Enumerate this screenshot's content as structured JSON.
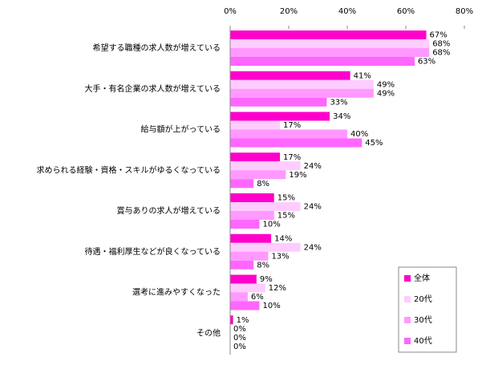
{
  "chart_data": {
    "type": "bar",
    "orientation": "horizontal",
    "categories": [
      "希望する職種の求人数が増えている",
      "大手・有名企業の求人数が増えている",
      "給与額が上がっている",
      "求められる経験・資格・スキルがゆるくなっている",
      "賞与ありの求人が増えている",
      "待遇・福利厚生などが良くなっている",
      "選考に進みやすくなった",
      "その他"
    ],
    "series": [
      {
        "name": "全体",
        "color": "#ff00cc",
        "values": [
          67,
          41,
          34,
          17,
          15,
          14,
          9,
          1
        ],
        "value_labels": [
          "67%",
          "41%",
          "34%",
          "17%",
          "15%",
          "14%",
          "9%",
          "1%"
        ]
      },
      {
        "name": "20代",
        "color": "#ffccff",
        "values": [
          68,
          49,
          17,
          24,
          24,
          24,
          12,
          0
        ],
        "value_labels": [
          "68%",
          "49%",
          "17%",
          "24%",
          "24%",
          "24%",
          "12%",
          "0%"
        ]
      },
      {
        "name": "30代",
        "color": "#ff99ff",
        "values": [
          68,
          49,
          40,
          19,
          15,
          13,
          6,
          0
        ],
        "value_labels": [
          "68%",
          "49%",
          "40%",
          "19%",
          "15%",
          "13%",
          "6%",
          "0%"
        ]
      },
      {
        "name": "40代",
        "color": "#ff66ff",
        "values": [
          63,
          33,
          45,
          8,
          10,
          8,
          10,
          0
        ],
        "value_labels": [
          "63%",
          "33%",
          "45%",
          "8%",
          "10%",
          "8%",
          "10%",
          "0%"
        ]
      }
    ],
    "xlim": [
      0,
      80
    ],
    "xticks": [
      {
        "value": 0,
        "label": "0%"
      },
      {
        "value": 20,
        "label": "20%"
      },
      {
        "value": 40,
        "label": "40%"
      },
      {
        "value": 60,
        "label": "60%"
      },
      {
        "value": 80,
        "label": "80%"
      }
    ],
    "legend": "bottom-right"
  }
}
